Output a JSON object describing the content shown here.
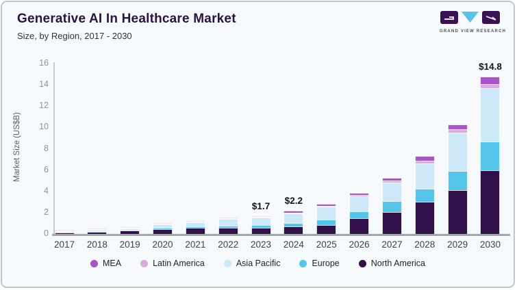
{
  "header": {
    "title": "Generative AI In Healthcare Market",
    "subtitle": "Size, by Region, 2017 - 2030",
    "logo_text": "GRAND VIEW RESEARCH"
  },
  "colors": {
    "card_bg": "#f7fafc",
    "card_border": "#c0c5ca",
    "title_text": "#2a1245",
    "axis_line": "#a2a7ac",
    "tick_text": "#8d939a",
    "logo_purple": "#3a1153",
    "logo_cyan": "#56c3e8"
  },
  "chart_data": {
    "type": "bar",
    "stacked": true,
    "title": "Generative AI In Healthcare Market",
    "subtitle": "Size, by Region, 2017 - 2030",
    "ylabel": "Market Size (US$B)",
    "ylim": [
      0,
      16
    ],
    "yticks": [
      0,
      2,
      4,
      6,
      8,
      10,
      12,
      14,
      16
    ],
    "grid": false,
    "legend_position": "bottom",
    "categories": [
      "2017",
      "2018",
      "2019",
      "2020",
      "2021",
      "2022",
      "2023",
      "2024",
      "2025",
      "2026",
      "2027",
      "2028",
      "2029",
      "2030"
    ],
    "series": [
      {
        "name": "North America",
        "color": "#321049",
        "values": [
          0.22,
          0.27,
          0.35,
          0.52,
          0.63,
          0.6,
          0.6,
          0.7,
          0.85,
          1.5,
          2.05,
          3.0,
          4.1,
          6.0
        ]
      },
      {
        "name": "Europe",
        "color": "#54c6ec",
        "values": [
          0.04,
          0.05,
          0.07,
          0.11,
          0.14,
          0.2,
          0.25,
          0.35,
          0.5,
          0.65,
          1.05,
          1.25,
          1.8,
          2.7
        ]
      },
      {
        "name": "Asia Pacific",
        "color": "#cde9f9",
        "values": [
          0.12,
          0.15,
          0.19,
          0.31,
          0.4,
          0.6,
          0.7,
          0.9,
          1.2,
          1.4,
          1.75,
          2.4,
          3.6,
          5.0
        ]
      },
      {
        "name": "Latin America",
        "color": "#d8ace2",
        "values": [
          0.01,
          0.01,
          0.01,
          0.02,
          0.03,
          0.05,
          0.05,
          0.05,
          0.1,
          0.1,
          0.15,
          0.2,
          0.3,
          0.4
        ]
      },
      {
        "name": "MEA",
        "color": "#a855cc",
        "values": [
          0.01,
          0.02,
          0.03,
          0.04,
          0.05,
          0.1,
          0.1,
          0.2,
          0.15,
          0.2,
          0.3,
          0.45,
          0.5,
          0.7
        ]
      }
    ],
    "totals": [
      0.4,
      0.5,
      0.65,
      1.0,
      1.25,
      1.55,
      1.7,
      2.2,
      2.8,
      3.85,
      5.3,
      7.3,
      10.3,
      14.8
    ],
    "annotations": [
      {
        "year": "2023",
        "label": "$1.7"
      },
      {
        "year": "2024",
        "label": "$2.2"
      },
      {
        "year": "2030",
        "label": "$14.8"
      }
    ]
  },
  "legend": {
    "items": [
      {
        "label": "MEA",
        "color": "#a855cc"
      },
      {
        "label": "Latin America",
        "color": "#d8ace2"
      },
      {
        "label": "Asia Pacific",
        "color": "#cde9f9"
      },
      {
        "label": "Europe",
        "color": "#54c6ec"
      },
      {
        "label": "North America",
        "color": "#321049"
      }
    ]
  }
}
